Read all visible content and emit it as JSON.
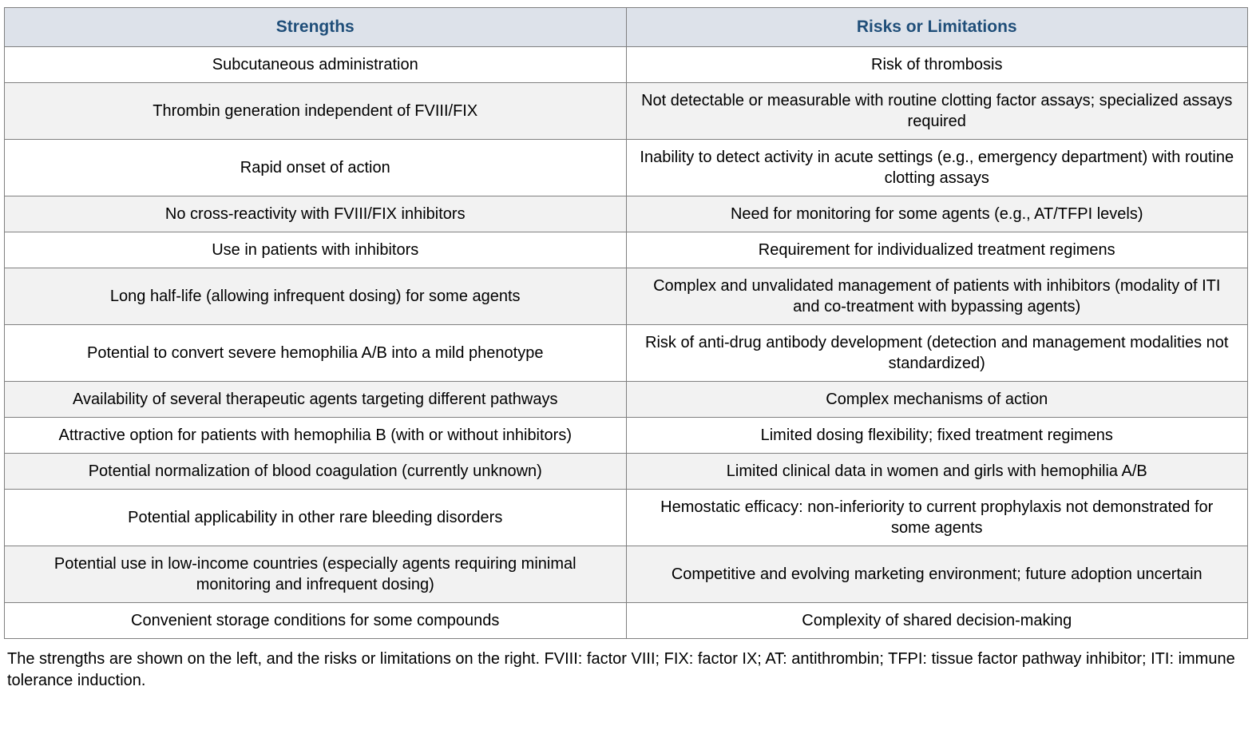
{
  "table": {
    "columns": [
      {
        "label": "Strengths"
      },
      {
        "label": "Risks or Limitations"
      }
    ],
    "rows": [
      {
        "strength": "Subcutaneous administration",
        "risk": "Risk of thrombosis"
      },
      {
        "strength": "Thrombin generation independent of FVIII/FIX",
        "risk": "Not detectable or measurable with routine clotting factor assays; specialized assays required"
      },
      {
        "strength": "Rapid onset of action",
        "risk": "Inability to detect activity in acute settings (e.g., emergency department) with routine clotting assays"
      },
      {
        "strength": "No cross-reactivity with FVIII/FIX inhibitors",
        "risk": "Need for monitoring for some agents (e.g., AT/TFPI levels)"
      },
      {
        "strength": "Use in patients with inhibitors",
        "risk": "Requirement for individualized treatment regimens"
      },
      {
        "strength": "Long half-life (allowing infrequent dosing) for some agents",
        "risk": "Complex and unvalidated management of patients with inhibitors (modality of ITI and co-treatment with bypassing agents)"
      },
      {
        "strength": "Potential to convert severe hemophilia A/B into a mild phenotype",
        "risk": "Risk of anti-drug antibody development (detection and management modalities not standardized)"
      },
      {
        "strength": "Availability of several therapeutic agents targeting different pathways",
        "risk": "Complex mechanisms of action"
      },
      {
        "strength": "Attractive option for patients with hemophilia B (with or without inhibitors)",
        "risk": "Limited dosing flexibility; fixed treatment regimens"
      },
      {
        "strength": "Potential normalization of blood coagulation (currently unknown)",
        "risk": "Limited clinical data in women and girls with hemophilia A/B"
      },
      {
        "strength": "Potential applicability in other rare bleeding disorders",
        "risk": "Hemostatic efficacy: non-inferiority to current prophylaxis not demonstrated for some agents"
      },
      {
        "strength": "Potential use in low-income countries (especially agents requiring minimal monitoring and infrequent dosing)",
        "risk": "Competitive and evolving marketing environment; future adoption uncertain"
      },
      {
        "strength": "Convenient storage conditions for some compounds",
        "risk": "Complexity of shared decision-making"
      }
    ]
  },
  "caption": "The strengths are shown on the left, and the risks or limitations on the right. FVIII: factor VIII; FIX: factor IX; AT: antithrombin; TFPI: tissue factor pathway inhibitor; ITI: immune tolerance induction.",
  "colors": {
    "header_bg": "#dde2ea",
    "header_text": "#1f4e79",
    "row_alt_bg": "#f2f2f2",
    "border": "#808080"
  }
}
